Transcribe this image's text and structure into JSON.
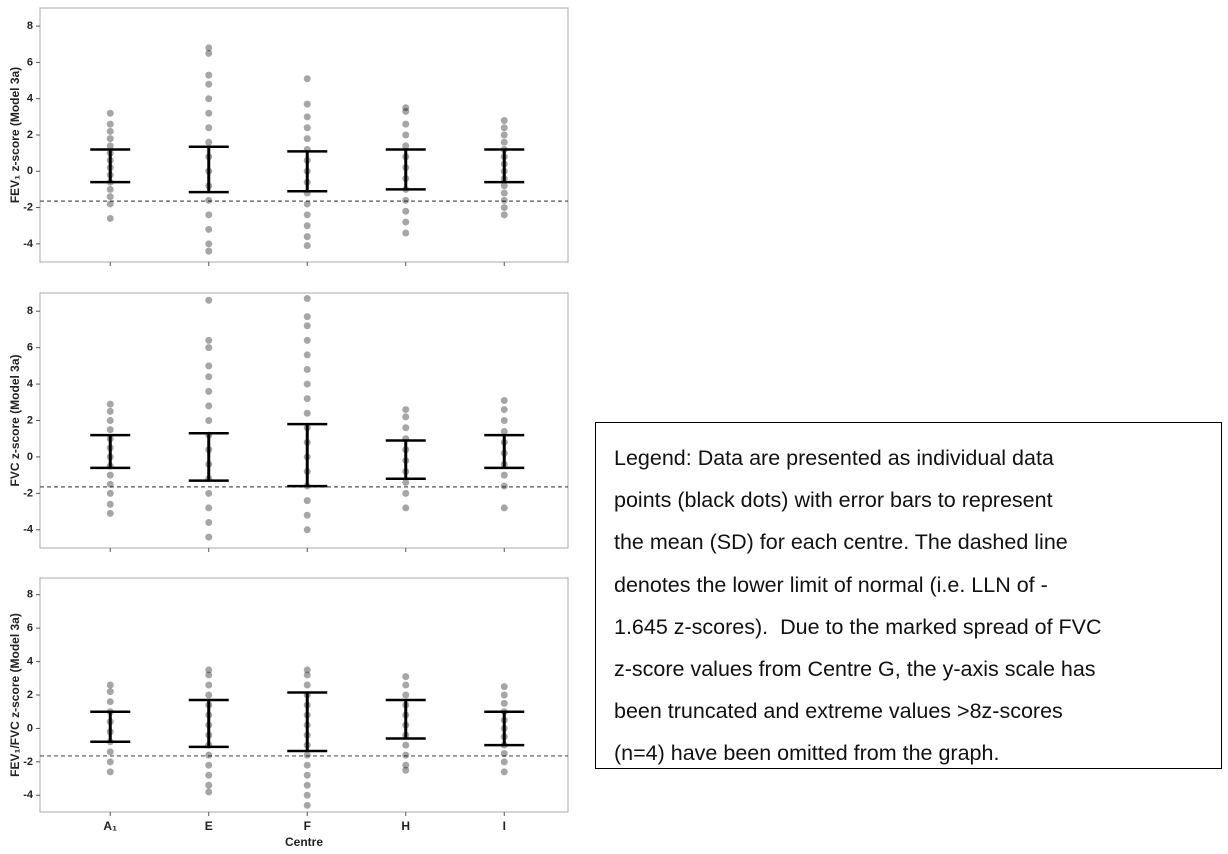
{
  "chart_data": [
    {
      "type": "strip",
      "ylabel": "FEV₁ z-score (Model 3a)",
      "color": "#000000",
      "ylim": [
        -5,
        9
      ],
      "yticks": [
        -4,
        -2,
        0,
        2,
        4,
        6,
        8
      ],
      "hline": -1.645,
      "values": [
        [
          3.2,
          2.6,
          2.2,
          1.8,
          1.4,
          1.0,
          0.6,
          0.2,
          -0.2,
          -0.6,
          -1.0,
          -1.4,
          -1.8,
          -2.6
        ],
        [
          6.8,
          6.5,
          5.3,
          4.8,
          4.0,
          3.2,
          2.4,
          1.6,
          0.8,
          0,
          -0.8,
          -1.6,
          -2.4,
          -3.2,
          -4.0,
          -4.4
        ],
        [
          5.1,
          3.7,
          3.0,
          2.4,
          1.8,
          1.2,
          0.6,
          0,
          -0.6,
          -1.2,
          -1.8,
          -2.4,
          -3.0,
          -3.6,
          -4.1
        ],
        [
          3.5,
          3.3,
          2.6,
          2.0,
          1.4,
          0.8,
          0.2,
          -0.4,
          -1.0,
          -1.6,
          -2.2,
          -2.8,
          -3.4
        ],
        [
          2.8,
          2.4,
          2.0,
          1.6,
          1.2,
          0.8,
          0.4,
          0,
          -0.4,
          -0.8,
          -1.2,
          -1.6,
          -2.0,
          -2.4
        ]
      ],
      "means": [
        0.3,
        0.1,
        0,
        0.1,
        0.3
      ],
      "sds": [
        0.9,
        1.25,
        1.1,
        1.1,
        0.9
      ]
    },
    {
      "type": "strip",
      "ylabel": "FVC z-score (Model 3a)",
      "color": "#000000",
      "ylim": [
        -5,
        9
      ],
      "yticks": [
        -4,
        -2,
        0,
        2,
        4,
        6,
        8
      ],
      "hline": -1.645,
      "values": [
        [
          2.9,
          2.5,
          2.0,
          1.5,
          1.0,
          0.5,
          0,
          -0.5,
          -1.0,
          -1.5,
          -2.0,
          -2.6,
          -3.1
        ],
        [
          8.6,
          6.4,
          6.0,
          5.0,
          4.4,
          3.6,
          2.8,
          2.0,
          1.2,
          0.4,
          -0.4,
          -1.2,
          -2.0,
          -2.8,
          -3.6,
          -4.4
        ],
        [
          8.7,
          7.7,
          7.2,
          6.4,
          5.6,
          4.8,
          4.0,
          3.2,
          2.4,
          1.6,
          0.8,
          0,
          -0.8,
          -1.6,
          -2.4,
          -3.2,
          -4.0
        ],
        [
          2.6,
          2.2,
          1.6,
          1.0,
          0.4,
          -0.2,
          -0.8,
          -1.4,
          -2.0,
          -2.8
        ],
        [
          3.1,
          2.6,
          2.0,
          1.4,
          0.8,
          0.2,
          -0.4,
          -1.0,
          -1.6,
          -2.8
        ]
      ],
      "means": [
        0.3,
        0,
        0.1,
        -0.15,
        0.3
      ],
      "sds": [
        0.9,
        1.3,
        1.7,
        1.05,
        0.9
      ]
    },
    {
      "type": "strip",
      "ylabel": "FEV₁/FVC z-score (Model 3a)",
      "xlabel": "Centre",
      "color": "#000000",
      "ylim": [
        -5,
        9
      ],
      "yticks": [
        -4,
        -2,
        0,
        2,
        4,
        6,
        8
      ],
      "hline": -1.645,
      "categories": [
        "A₁",
        "E",
        "F",
        "H",
        "I"
      ],
      "values": [
        [
          2.6,
          2.2,
          1.6,
          1.0,
          0.4,
          -0.2,
          -0.8,
          -1.4,
          -2.0,
          -2.6
        ],
        [
          3.5,
          3.2,
          2.6,
          2.0,
          1.4,
          0.8,
          0.2,
          -0.4,
          -1.0,
          -1.6,
          -2.2,
          -2.8,
          -3.4,
          -3.8
        ],
        [
          3.5,
          3.2,
          2.6,
          2.0,
          1.4,
          0.8,
          0.2,
          -0.4,
          -1.0,
          -1.6,
          -2.2,
          -2.8,
          -3.4,
          -4.0,
          -4.6
        ],
        [
          3.1,
          2.6,
          2.0,
          1.4,
          0.8,
          0.2,
          -0.4,
          -1.0,
          -1.6,
          -2.2,
          -2.5
        ],
        [
          2.5,
          2.0,
          1.5,
          1.0,
          0.5,
          0,
          -0.5,
          -1.0,
          -1.5,
          -2.0,
          -2.6
        ]
      ],
      "means": [
        0.1,
        0.3,
        0.4,
        0.55,
        0
      ],
      "sds": [
        0.9,
        1.4,
        1.75,
        1.15,
        1.0
      ]
    }
  ],
  "legend_note": {
    "lines": [
      "Legend: Data are presented as individual data",
      "points (black dots) with error bars to represent",
      "the mean (SD) for each centre. The dashed line",
      "denotes the lower limit of normal (i.e. LLN of -",
      "1.645 z-scores).  Due to the marked spread of FVC",
      "z-score values from Centre G, the y-axis scale has",
      "been truncated and extreme values >8z-scores",
      "(n=4) have been omitted from the graph."
    ]
  }
}
